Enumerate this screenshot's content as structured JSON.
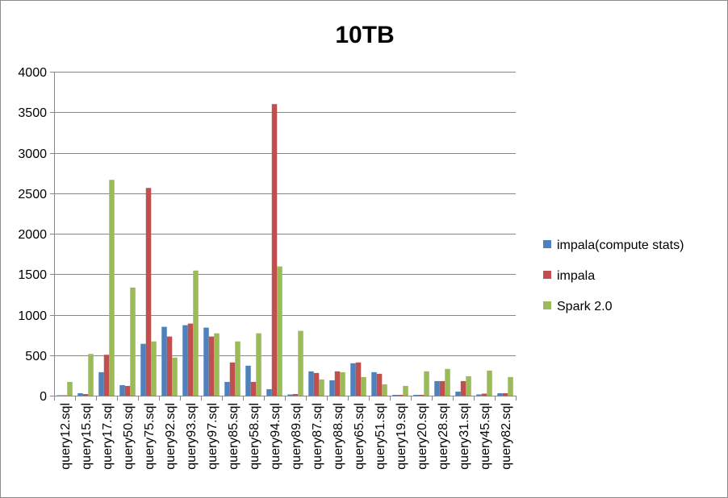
{
  "chart_data": {
    "type": "bar",
    "title": "10TB",
    "xlabel": "",
    "ylabel": "",
    "ylim": [
      0,
      4000
    ],
    "yticks": [
      "0",
      "500",
      "1000",
      "1500",
      "2000",
      "2500",
      "3000",
      "3500",
      "4000"
    ],
    "grid": true,
    "legend_position": "right",
    "categories": [
      "query12.sql",
      "query15.sql",
      "query17.sql",
      "query50.sql",
      "query75.sql",
      "query92.sql",
      "query93.sql",
      "query97.sql",
      "query85.sql",
      "query58.sql",
      "query94.sql",
      "query89.sql",
      "query87.sql",
      "query88.sql",
      "query65.sql",
      "query51.sql",
      "query19.sql",
      "query20.sql",
      "query28.sql",
      "query31.sql",
      "query45.sql",
      "query82.sql"
    ],
    "series": [
      {
        "name": "impala(compute stats)",
        "color": "#4f81bd",
        "values": [
          5,
          30,
          290,
          130,
          640,
          850,
          870,
          840,
          170,
          370,
          80,
          15,
          300,
          190,
          400,
          290,
          10,
          10,
          180,
          50,
          15,
          30
        ]
      },
      {
        "name": "impala",
        "color": "#c0504d",
        "values": [
          5,
          20,
          505,
          120,
          2565,
          730,
          890,
          730,
          410,
          170,
          3600,
          20,
          280,
          300,
          410,
          270,
          10,
          10,
          180,
          180,
          25,
          30
        ]
      },
      {
        "name": "Spark 2.0",
        "color": "#9bbb59",
        "values": [
          170,
          515,
          2665,
          1335,
          670,
          470,
          1545,
          770,
          670,
          770,
          1595,
          800,
          200,
          290,
          230,
          140,
          120,
          300,
          330,
          240,
          310,
          230
        ]
      }
    ]
  }
}
